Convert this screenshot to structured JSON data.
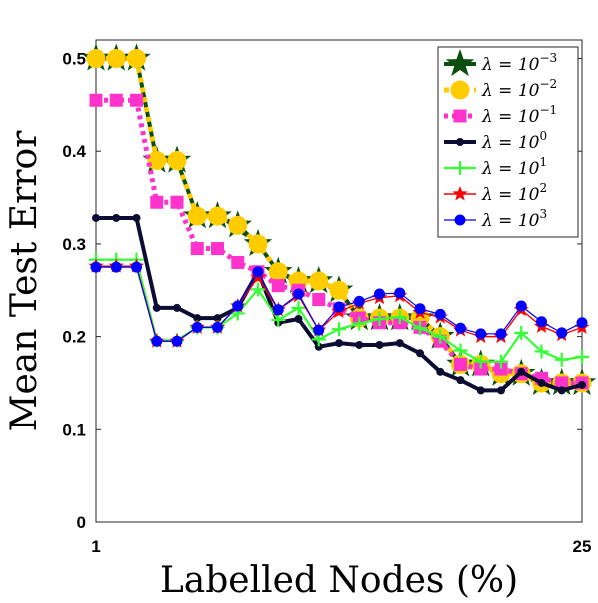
{
  "chart_data": {
    "type": "line",
    "xlabel": "Labelled Nodes (%)",
    "ylabel": "Mean Test Error",
    "xlim": [
      1,
      25
    ],
    "ylim": [
      0,
      0.52
    ],
    "xticks": [
      "1",
      "25"
    ],
    "yticks": [
      "0",
      "0.1",
      "0.2",
      "0.3",
      "0.4",
      "0.5"
    ],
    "grid": false,
    "legend_position": "top-right",
    "x": [
      1,
      2,
      3,
      4,
      5,
      6,
      7,
      8,
      9,
      10,
      11,
      12,
      13,
      14,
      15,
      16,
      17,
      18,
      19,
      20,
      21,
      22,
      23,
      24,
      25
    ],
    "series": [
      {
        "name": "λ = 10^-3",
        "color": "#0b4f10",
        "marker": "star-large",
        "values": [
          0.5,
          0.5,
          0.5,
          0.39,
          0.39,
          0.33,
          0.33,
          0.32,
          0.3,
          0.27,
          0.26,
          0.26,
          0.25,
          0.22,
          0.22,
          0.22,
          0.22,
          0.2,
          0.17,
          0.17,
          0.16,
          0.16,
          0.15,
          0.15,
          0.15
        ]
      },
      {
        "name": "λ = 10^-2",
        "color": "#ffcc00",
        "marker": "circle",
        "values": [
          0.5,
          0.5,
          0.5,
          0.39,
          0.39,
          0.33,
          0.33,
          0.32,
          0.3,
          0.27,
          0.26,
          0.26,
          0.25,
          0.22,
          0.22,
          0.22,
          0.22,
          0.2,
          0.17,
          0.17,
          0.16,
          0.16,
          0.15,
          0.15,
          0.15
        ]
      },
      {
        "name": "λ = 10^-1",
        "color": "#ff33cc",
        "marker": "square",
        "values": [
          0.455,
          0.455,
          0.455,
          0.345,
          0.345,
          0.295,
          0.295,
          0.28,
          0.27,
          0.255,
          0.25,
          0.24,
          0.23,
          0.22,
          0.215,
          0.215,
          0.21,
          0.195,
          0.17,
          0.165,
          0.165,
          0.16,
          0.155,
          0.15,
          0.15
        ]
      },
      {
        "name": "λ = 10^0",
        "color": "#0d0d33",
        "marker": "dot",
        "values": [
          0.328,
          0.328,
          0.328,
          0.231,
          0.231,
          0.22,
          0.22,
          0.231,
          0.27,
          0.215,
          0.219,
          0.189,
          0.193,
          0.191,
          0.191,
          0.193,
          0.182,
          0.162,
          0.153,
          0.142,
          0.142,
          0.162,
          0.15,
          0.142,
          0.148
        ]
      },
      {
        "name": "λ = 10^1",
        "color": "#33ff33",
        "marker": "plus",
        "values": [
          0.283,
          0.283,
          0.283,
          0.196,
          0.196,
          0.21,
          0.21,
          0.225,
          0.251,
          0.218,
          0.231,
          0.197,
          0.208,
          0.214,
          0.219,
          0.221,
          0.209,
          0.2,
          0.185,
          0.173,
          0.173,
          0.204,
          0.184,
          0.175,
          0.178
        ]
      },
      {
        "name": "λ = 10^2",
        "color": "#ff0000",
        "marker": "star",
        "values": [
          0.276,
          0.276,
          0.276,
          0.195,
          0.195,
          0.21,
          0.21,
          0.233,
          0.264,
          0.229,
          0.244,
          0.207,
          0.227,
          0.236,
          0.242,
          0.244,
          0.226,
          0.221,
          0.207,
          0.2,
          0.2,
          0.229,
          0.211,
          0.202,
          0.21
        ]
      },
      {
        "name": "λ = 10^3",
        "color": "#0000ff",
        "marker": "circle-small",
        "values": [
          0.275,
          0.275,
          0.275,
          0.195,
          0.195,
          0.21,
          0.21,
          0.233,
          0.27,
          0.229,
          0.246,
          0.207,
          0.232,
          0.238,
          0.246,
          0.247,
          0.23,
          0.224,
          0.209,
          0.203,
          0.203,
          0.233,
          0.216,
          0.204,
          0.215
        ]
      }
    ],
    "legend": [
      {
        "base": "λ = 10",
        "exp": "−3"
      },
      {
        "base": "λ = 10",
        "exp": "−2"
      },
      {
        "base": "λ = 10",
        "exp": "−1"
      },
      {
        "base": "λ = 10",
        "exp": "0"
      },
      {
        "base": "λ = 10",
        "exp": "1"
      },
      {
        "base": "λ = 10",
        "exp": "2"
      },
      {
        "base": "λ = 10",
        "exp": "3"
      }
    ]
  }
}
